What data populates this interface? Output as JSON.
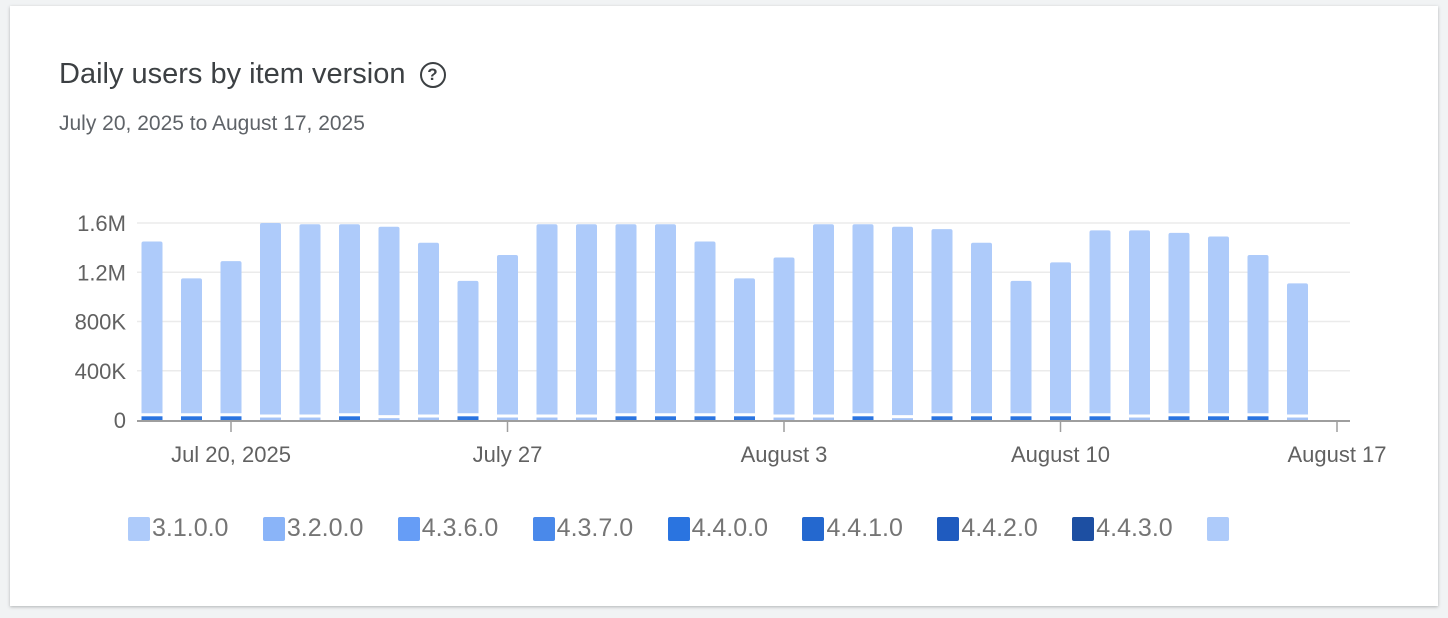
{
  "title": "Daily users by item version",
  "help_icon": "help-circle-icon",
  "subtitle": "July 20, 2025 to August 17, 2025",
  "chart_data": {
    "type": "bar",
    "stacked": true,
    "title": "Daily users by item version",
    "x": [
      "2025-07-18",
      "2025-07-19",
      "2025-07-20",
      "2025-07-21",
      "2025-07-22",
      "2025-07-23",
      "2025-07-24",
      "2025-07-25",
      "2025-07-26",
      "2025-07-27",
      "2025-07-28",
      "2025-07-29",
      "2025-07-30",
      "2025-07-31",
      "2025-08-01",
      "2025-08-02",
      "2025-08-03",
      "2025-08-04",
      "2025-08-05",
      "2025-08-06",
      "2025-08-07",
      "2025-08-08",
      "2025-08-09",
      "2025-08-10",
      "2025-08-11",
      "2025-08-12",
      "2025-08-13",
      "2025-08-14",
      "2025-08-15",
      "2025-08-16"
    ],
    "totals": [
      1450000,
      1150000,
      1290000,
      1600000,
      1590000,
      1590000,
      1570000,
      1440000,
      1130000,
      1340000,
      1590000,
      1590000,
      1590000,
      1590000,
      1450000,
      1150000,
      1320000,
      1590000,
      1590000,
      1570000,
      1550000,
      1440000,
      1130000,
      1280000,
      1540000,
      1540000,
      1520000,
      1490000,
      1340000,
      1110000
    ],
    "bottom_segment": {
      "values": [
        30000,
        30000,
        30000,
        20000,
        20000,
        30000,
        15000,
        20000,
        30000,
        20000,
        20000,
        20000,
        30000,
        30000,
        30000,
        30000,
        20000,
        20000,
        30000,
        15000,
        30000,
        30000,
        30000,
        30000,
        30000,
        20000,
        30000,
        30000,
        30000,
        20000
      ],
      "dark": [
        1,
        1,
        1,
        0,
        0,
        1,
        0,
        0,
        1,
        0,
        0,
        0,
        1,
        1,
        1,
        1,
        0,
        0,
        1,
        0,
        1,
        1,
        1,
        1,
        1,
        0,
        1,
        1,
        1,
        0
      ]
    },
    "ylim": [
      0,
      1600000
    ],
    "yticks": [
      {
        "v": 0,
        "label": "0"
      },
      {
        "v": 400000,
        "label": "400K"
      },
      {
        "v": 800000,
        "label": "800K"
      },
      {
        "v": 1200000,
        "label": "1.2M"
      },
      {
        "v": 1600000,
        "label": "1.6M"
      }
    ],
    "xticks": [
      {
        "x": "2025-07-20",
        "label": "Jul 20, 2025"
      },
      {
        "x": "2025-07-27",
        "label": "July 27"
      },
      {
        "x": "2025-08-03",
        "label": "August 3"
      },
      {
        "x": "2025-08-10",
        "label": "August 10"
      },
      {
        "x": "2025-08-17",
        "label": "August 17"
      }
    ],
    "grid": true,
    "legend_position": "bottom",
    "legend": [
      {
        "name": "3.1.0.0",
        "color": "#aecbfa"
      },
      {
        "name": "3.2.0.0",
        "color": "#8ab4f8"
      },
      {
        "name": "4.3.6.0",
        "color": "#669df6"
      },
      {
        "name": "4.3.7.0",
        "color": "#4a89ea"
      },
      {
        "name": "4.4.0.0",
        "color": "#2a74e0"
      },
      {
        "name": "4.4.1.0",
        "color": "#2468cf"
      },
      {
        "name": "4.4.2.0",
        "color": "#1f5bbf"
      },
      {
        "name": "4.4.3.0",
        "color": "#1d4fa2"
      },
      {
        "name": "",
        "color": "#aecbfa"
      }
    ],
    "colors": {
      "main": "#aecbfa",
      "bottom_dark": "#2a74e0",
      "bottom_light": "#a4c3f7"
    }
  }
}
